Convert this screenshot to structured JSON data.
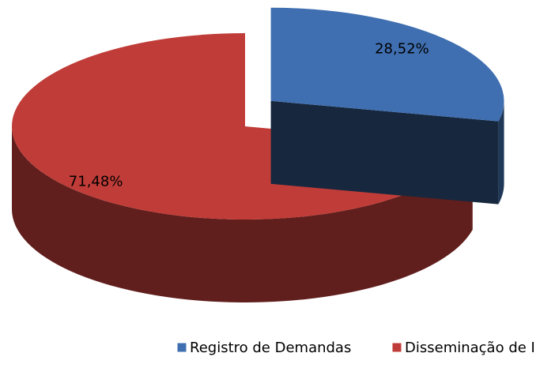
{
  "chart_data": {
    "type": "pie",
    "categories": [
      "Registro de Demandas",
      "Disseminação de Informação"
    ],
    "values": [
      28.52,
      71.48
    ],
    "value_labels": [
      "28,52%",
      "71,48%"
    ],
    "colors": [
      "#3f6fb0",
      "#c03c38"
    ],
    "legend": "bottom"
  }
}
